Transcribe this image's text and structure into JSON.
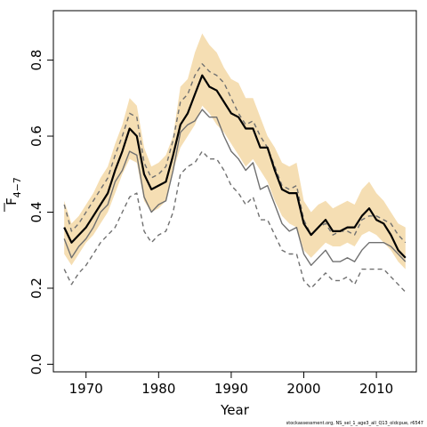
{
  "chart_data": {
    "type": "line",
    "title": "",
    "xlabel": "Year",
    "ylabel": "F̄4−7",
    "ylabel_parts": {
      "base": "F",
      "subscript": "4−7"
    },
    "xlim": [
      1965.5,
      2015.5
    ],
    "ylim": [
      -0.02,
      0.93
    ],
    "x_ticks": [
      1970,
      1980,
      1990,
      2000,
      2010
    ],
    "y_ticks": [
      0.0,
      0.2,
      0.4,
      0.6,
      0.8
    ],
    "y_tick_labels": [
      "0.0",
      "0.2",
      "0.4",
      "0.6",
      "0.8"
    ],
    "grid": false,
    "legend": "none",
    "x": [
      1967,
      1968,
      1969,
      1970,
      1971,
      1972,
      1973,
      1974,
      1975,
      1976,
      1977,
      1978,
      1979,
      1980,
      1981,
      1982,
      1983,
      1984,
      1985,
      1986,
      1987,
      1988,
      1989,
      1990,
      1991,
      1992,
      1993,
      1994,
      1995,
      1996,
      1997,
      1998,
      1999,
      2000,
      2001,
      2002,
      2003,
      2004,
      2005,
      2006,
      2007,
      2008,
      2009,
      2010,
      2011,
      2012,
      2013,
      2014
    ],
    "band": {
      "name": "confidence interval",
      "color": "#f5deb3",
      "lower": [
        0.29,
        0.26,
        0.29,
        0.32,
        0.34,
        0.37,
        0.4,
        0.45,
        0.5,
        0.54,
        0.53,
        0.43,
        0.4,
        0.41,
        0.43,
        0.51,
        0.57,
        0.6,
        0.63,
        0.68,
        0.66,
        0.63,
        0.61,
        0.58,
        0.55,
        0.52,
        0.54,
        0.51,
        0.48,
        0.43,
        0.39,
        0.37,
        0.36,
        0.3,
        0.28,
        0.3,
        0.32,
        0.31,
        0.31,
        0.32,
        0.31,
        0.34,
        0.35,
        0.34,
        0.32,
        0.3,
        0.27,
        0.25
      ],
      "upper": [
        0.43,
        0.37,
        0.39,
        0.42,
        0.45,
        0.49,
        0.52,
        0.58,
        0.63,
        0.7,
        0.68,
        0.57,
        0.52,
        0.53,
        0.55,
        0.6,
        0.73,
        0.75,
        0.82,
        0.87,
        0.84,
        0.82,
        0.78,
        0.75,
        0.74,
        0.7,
        0.7,
        0.65,
        0.6,
        0.57,
        0.53,
        0.52,
        0.53,
        0.43,
        0.4,
        0.42,
        0.43,
        0.41,
        0.42,
        0.43,
        0.42,
        0.46,
        0.48,
        0.45,
        0.43,
        0.4,
        0.37,
        0.36
      ]
    },
    "series": [
      {
        "name": "estimate",
        "color": "#000000",
        "width": 2.2,
        "dash": "",
        "values": [
          0.36,
          0.32,
          0.34,
          0.36,
          0.39,
          0.42,
          0.45,
          0.51,
          0.56,
          0.62,
          0.6,
          0.5,
          0.46,
          0.47,
          0.48,
          0.55,
          0.63,
          0.66,
          0.71,
          0.76,
          0.73,
          0.72,
          0.69,
          0.66,
          0.65,
          0.62,
          0.62,
          0.57,
          0.57,
          0.51,
          0.46,
          0.45,
          0.45,
          0.37,
          0.34,
          0.36,
          0.38,
          0.35,
          0.35,
          0.36,
          0.36,
          0.39,
          0.41,
          0.38,
          0.37,
          0.34,
          0.3,
          0.28
        ]
      },
      {
        "name": "upper dashed",
        "color": "#707070",
        "width": 1.4,
        "dash": "5,4",
        "values": [
          0.42,
          0.35,
          0.37,
          0.4,
          0.43,
          0.46,
          0.49,
          0.55,
          0.6,
          0.66,
          0.65,
          0.53,
          0.49,
          0.5,
          0.52,
          0.59,
          0.69,
          0.71,
          0.76,
          0.79,
          0.77,
          0.76,
          0.74,
          0.7,
          0.66,
          0.63,
          0.64,
          0.6,
          0.57,
          0.52,
          0.47,
          0.46,
          0.47,
          0.38,
          0.34,
          0.36,
          0.37,
          0.34,
          0.35,
          0.35,
          0.34,
          0.38,
          0.39,
          0.39,
          0.38,
          0.37,
          0.34,
          0.32
        ]
      },
      {
        "name": "solid grey",
        "color": "#707070",
        "width": 1.4,
        "dash": "",
        "values": [
          0.33,
          0.28,
          0.31,
          0.33,
          0.36,
          0.4,
          0.42,
          0.48,
          0.51,
          0.56,
          0.55,
          0.44,
          0.4,
          0.42,
          0.43,
          0.51,
          0.61,
          0.63,
          0.64,
          0.67,
          0.65,
          0.65,
          0.6,
          0.56,
          0.54,
          0.51,
          0.53,
          0.46,
          0.47,
          0.42,
          0.37,
          0.35,
          0.36,
          0.29,
          0.26,
          0.28,
          0.3,
          0.27,
          0.27,
          0.28,
          0.27,
          0.3,
          0.32,
          0.32,
          0.32,
          0.31,
          0.29,
          0.27
        ]
      },
      {
        "name": "lower dashed",
        "color": "#707070",
        "width": 1.4,
        "dash": "5,4",
        "values": [
          0.25,
          0.21,
          0.24,
          0.26,
          0.29,
          0.32,
          0.34,
          0.36,
          0.4,
          0.44,
          0.45,
          0.35,
          0.32,
          0.34,
          0.35,
          0.4,
          0.5,
          0.52,
          0.53,
          0.56,
          0.54,
          0.54,
          0.51,
          0.47,
          0.45,
          0.42,
          0.44,
          0.38,
          0.38,
          0.34,
          0.3,
          0.29,
          0.29,
          0.22,
          0.2,
          0.22,
          0.24,
          0.22,
          0.22,
          0.23,
          0.21,
          0.25,
          0.25,
          0.25,
          0.25,
          0.23,
          0.21,
          0.19
        ]
      }
    ]
  },
  "credit": "stockassessment.org, NS_sel_1_age3_all_Q13_oldcpue, r6547"
}
